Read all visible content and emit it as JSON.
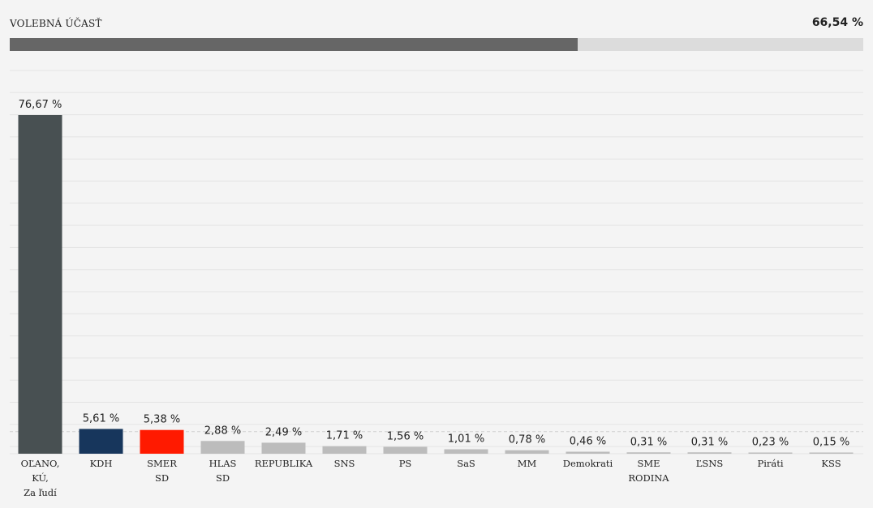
{
  "turnout": {
    "label": "VOLEBNÁ ÚČASŤ",
    "value_text": "66,54 %",
    "value": 66.54
  },
  "colors": {
    "background": "#f4f4f4",
    "turnout_fill": "#666666",
    "turnout_track": "#dcdcdc",
    "grid": "#e3e3e3",
    "threshold_line": "#cfcfcf",
    "default_bar": "#bcbcbc"
  },
  "chart_data": {
    "type": "bar",
    "title": "",
    "xlabel": "",
    "ylabel": "",
    "ylim": [
      0,
      85
    ],
    "grid": true,
    "threshold": 5,
    "categories": [
      [
        "OĽANO,",
        "KÚ,",
        "Za ľudí"
      ],
      [
        "KDH"
      ],
      [
        "SMER",
        "SD"
      ],
      [
        "HLAS",
        "SD"
      ],
      [
        "REPUBLIKA"
      ],
      [
        "SNS"
      ],
      [
        "PS"
      ],
      [
        "SaS"
      ],
      [
        "MM"
      ],
      [
        "Demokrati"
      ],
      [
        "SME",
        "RODINA"
      ],
      [
        "ĽSNS"
      ],
      [
        "Piráti"
      ],
      [
        "KSS"
      ]
    ],
    "values": [
      76.67,
      5.61,
      5.38,
      2.88,
      2.49,
      1.71,
      1.56,
      1.01,
      0.78,
      0.46,
      0.31,
      0.31,
      0.23,
      0.15
    ],
    "value_labels": [
      "76,67 %",
      "5,61 %",
      "5,38 %",
      "2,88 %",
      "2,49 %",
      "1,71 %",
      "1,56 %",
      "1,01 %",
      "0,78 %",
      "0,46 %",
      "0,31 %",
      "0,31 %",
      "0,23 %",
      "0,15 %"
    ],
    "colors": [
      "#485052",
      "#17365c",
      "#ff1a00",
      "#bcbcbc",
      "#bcbcbc",
      "#bcbcbc",
      "#bcbcbc",
      "#bcbcbc",
      "#bcbcbc",
      "#bcbcbc",
      "#bcbcbc",
      "#bcbcbc",
      "#bcbcbc",
      "#bcbcbc"
    ]
  }
}
